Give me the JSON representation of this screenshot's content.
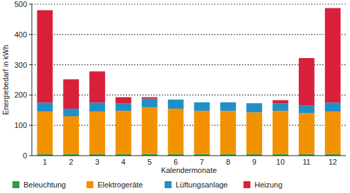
{
  "chart_data": {
    "type": "bar",
    "stacked": true,
    "x_label": "Kalendermonate",
    "y_label": "Energiebedarf in kWh",
    "categories": [
      "1",
      "2",
      "3",
      "4",
      "5",
      "6",
      "7",
      "8",
      "9",
      "10",
      "11",
      "12"
    ],
    "series": [
      {
        "name": "Beleuchtung",
        "color": "#2f9e3f",
        "values": [
          5,
          5,
          5,
          5,
          5,
          5,
          5,
          5,
          5,
          5,
          5,
          5
        ]
      },
      {
        "name": "Elektrogeräte",
        "color": "#f39200",
        "values": [
          140,
          125,
          140,
          143,
          155,
          150,
          143,
          143,
          138,
          143,
          135,
          140
        ]
      },
      {
        "name": "Lüftungsanlage",
        "color": "#1f8fc8",
        "values": [
          30,
          25,
          30,
          24,
          28,
          30,
          28,
          28,
          30,
          24,
          25,
          30
        ]
      },
      {
        "name": "Heizung",
        "color": "#d9203a",
        "values": [
          305,
          97,
          103,
          21,
          5,
          0,
          0,
          0,
          0,
          11,
          157,
          312
        ]
      }
    ],
    "ylim": [
      0,
      500
    ],
    "yticks": [
      0,
      100,
      200,
      300,
      400,
      500
    ],
    "grid": true,
    "legend": "bottom"
  }
}
